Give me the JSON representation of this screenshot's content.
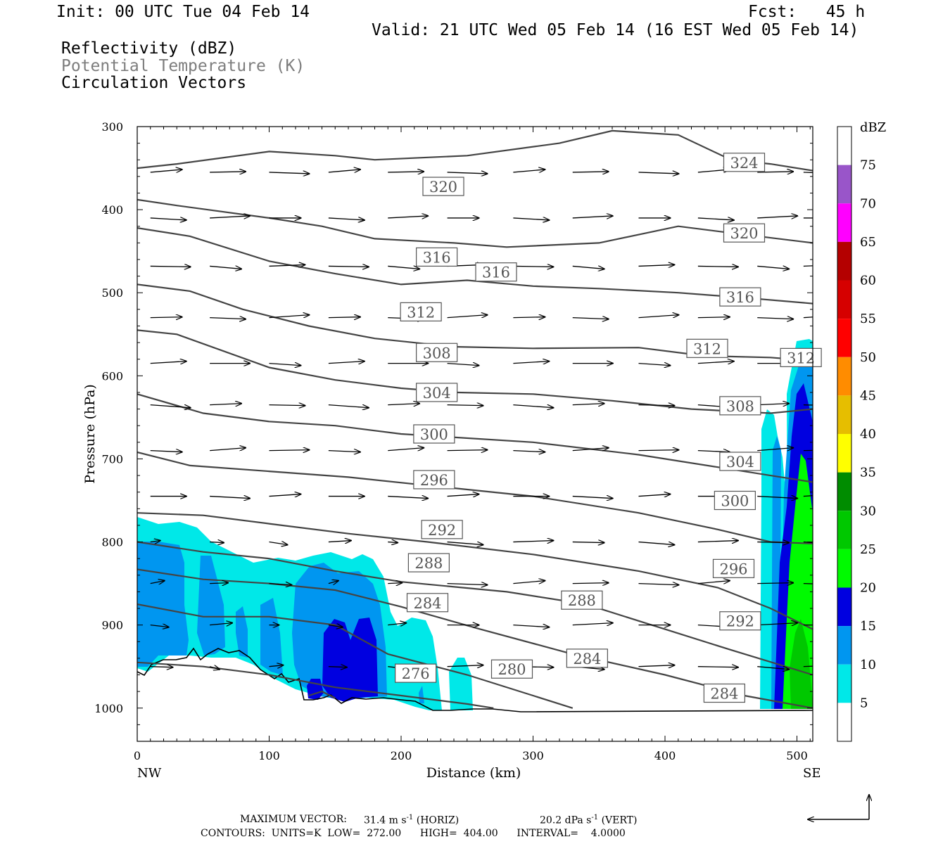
{
  "header": {
    "init": "Init: 00 UTC Tue 04 Feb 14",
    "fcst": "Fcst:   45 h",
    "valid": "Valid: 21 UTC Wed 05 Feb 14 (16 EST Wed 05 Feb 14)",
    "field1": "Reflectivity (dBZ)",
    "field2": "Potential Temperature (K)",
    "field3": "Circulation Vectors"
  },
  "footer": {
    "max_vector_label": "MAXIMUM VECTOR:",
    "max_horiz": "31.4 m s",
    "horiz_suffix": "(HORIZ)",
    "max_vert": "20.2 dPa s",
    "vert_suffix": "(VERT)",
    "exp": "-1",
    "contours": "CONTOURS:  UNITS=K  LOW=  272.00      HIGH=  404.00      INTERVAL=    4.0000"
  },
  "chart_data": {
    "type": "cross-section",
    "xlabel": "Distance (km)",
    "ylabel": "Pressure (hPa)",
    "x_left_label": "NW",
    "x_right_label": "SE",
    "xlim": [
      0,
      512
    ],
    "ylim": [
      1040,
      300
    ],
    "x_ticks": [
      0,
      100,
      200,
      300,
      400,
      500
    ],
    "y_ticks": [
      300,
      400,
      500,
      600,
      700,
      800,
      900,
      1000
    ],
    "colorbar": {
      "title": "dBZ",
      "levels": [
        5,
        10,
        15,
        20,
        25,
        30,
        35,
        40,
        45,
        50,
        55,
        60,
        65,
        70,
        75
      ],
      "colors": [
        "#ffffff",
        "#00e8e8",
        "#0096f0",
        "#0000e0",
        "#00fa00",
        "#00c800",
        "#008c00",
        "#ffff00",
        "#e6be00",
        "#ff8c00",
        "#ff0000",
        "#d60000",
        "#b40000",
        "#ff00ff",
        "#9955c9",
        "#ffffff"
      ]
    },
    "theta_contours": [
      {
        "label": "324",
        "points": [
          [
            0,
            350
          ],
          [
            30,
            345
          ],
          [
            100,
            330
          ],
          [
            150,
            335
          ],
          [
            180,
            340
          ],
          [
            250,
            335
          ],
          [
            320,
            320
          ],
          [
            360,
            305
          ],
          [
            410,
            310
          ],
          [
            450,
            340
          ],
          [
            480,
            345
          ],
          [
            512,
            353
          ]
        ]
      },
      {
        "label": "320",
        "points": [
          [
            0,
            388
          ],
          [
            30,
            395
          ],
          [
            100,
            410
          ],
          [
            140,
            420
          ],
          [
            180,
            435
          ],
          [
            240,
            440
          ],
          [
            280,
            445
          ],
          [
            350,
            440
          ],
          [
            410,
            420
          ],
          [
            450,
            428
          ],
          [
            512,
            440
          ]
        ]
      },
      {
        "label": "316",
        "points": [
          [
            0,
            422
          ],
          [
            40,
            432
          ],
          [
            100,
            462
          ],
          [
            150,
            477
          ],
          [
            200,
            490
          ],
          [
            250,
            485
          ],
          [
            300,
            492
          ],
          [
            350,
            495
          ],
          [
            410,
            500
          ],
          [
            460,
            506
          ],
          [
            512,
            513
          ]
        ]
      },
      {
        "label": "312",
        "points": [
          [
            0,
            490
          ],
          [
            40,
            498
          ],
          [
            80,
            520
          ],
          [
            130,
            540
          ],
          [
            180,
            555
          ],
          [
            240,
            565
          ],
          [
            300,
            567
          ],
          [
            380,
            566
          ],
          [
            430,
            576
          ],
          [
            480,
            578
          ],
          [
            512,
            582
          ]
        ]
      },
      {
        "label": "308",
        "points": [
          [
            0,
            545
          ],
          [
            30,
            550
          ],
          [
            100,
            590
          ],
          [
            150,
            605
          ],
          [
            200,
            615
          ],
          [
            240,
            620
          ],
          [
            300,
            622
          ],
          [
            360,
            630
          ],
          [
            420,
            640
          ],
          [
            480,
            645
          ],
          [
            512,
            640
          ]
        ]
      },
      {
        "label": "304",
        "points": [
          [
            0,
            622
          ],
          [
            50,
            645
          ],
          [
            100,
            655
          ],
          [
            150,
            660
          ],
          [
            200,
            670
          ],
          [
            300,
            680
          ],
          [
            380,
            695
          ],
          [
            440,
            710
          ],
          [
            480,
            720
          ],
          [
            512,
            728
          ]
        ]
      },
      {
        "label": "300",
        "points": [
          [
            0,
            692
          ],
          [
            40,
            708
          ],
          [
            100,
            715
          ],
          [
            160,
            722
          ],
          [
            220,
            732
          ],
          [
            300,
            745
          ],
          [
            380,
            765
          ],
          [
            440,
            785
          ],
          [
            480,
            800
          ],
          [
            512,
            802
          ]
        ]
      },
      {
        "label": "296",
        "points": [
          [
            0,
            765
          ],
          [
            50,
            768
          ],
          [
            100,
            778
          ],
          [
            160,
            790
          ],
          [
            220,
            800
          ],
          [
            300,
            815
          ],
          [
            380,
            835
          ],
          [
            440,
            855
          ],
          [
            480,
            880
          ],
          [
            512,
            905
          ]
        ]
      },
      {
        "label": "292",
        "points": [
          [
            0,
            800
          ],
          [
            50,
            812
          ],
          [
            100,
            820
          ],
          [
            150,
            835
          ],
          [
            200,
            848
          ],
          [
            280,
            860
          ],
          [
            340,
            875
          ],
          [
            400,
            905
          ],
          [
            450,
            930
          ],
          [
            512,
            960
          ]
        ]
      },
      {
        "label": "288",
        "points": [
          [
            0,
            833
          ],
          [
            50,
            845
          ],
          [
            100,
            850
          ],
          [
            150,
            858
          ],
          [
            200,
            878
          ],
          [
            260,
            905
          ],
          [
            330,
            935
          ],
          [
            400,
            960
          ],
          [
            460,
            985
          ],
          [
            512,
            1000
          ]
        ]
      },
      {
        "label": "284",
        "points": [
          [
            0,
            875
          ],
          [
            50,
            890
          ],
          [
            100,
            890
          ],
          [
            150,
            900
          ],
          [
            190,
            935
          ],
          [
            250,
            960
          ],
          [
            300,
            985
          ],
          [
            330,
            1000
          ]
        ]
      },
      {
        "label": "280",
        "points": [
          [
            0,
            945
          ],
          [
            50,
            950
          ],
          [
            100,
            960
          ],
          [
            150,
            975
          ],
          [
            200,
            985
          ],
          [
            250,
            995
          ],
          [
            270,
            1000
          ]
        ]
      },
      {
        "label": "276",
        "points": [
          [
            130,
            985
          ],
          [
            140,
            980
          ],
          [
            150,
            988
          ]
        ]
      }
    ],
    "theta_label_positions": [
      {
        "label": "324",
        "x": 460,
        "p": 343
      },
      {
        "label": "320",
        "x": 232,
        "p": 372
      },
      {
        "label": "320",
        "x": 460,
        "p": 428
      },
      {
        "label": "316",
        "x": 227,
        "p": 457
      },
      {
        "label": "316",
        "x": 272,
        "p": 475
      },
      {
        "label": "316",
        "x": 457,
        "p": 505
      },
      {
        "label": "312",
        "x": 215,
        "p": 523
      },
      {
        "label": "312",
        "x": 432,
        "p": 567
      },
      {
        "label": "312",
        "x": 503,
        "p": 578
      },
      {
        "label": "308",
        "x": 227,
        "p": 572
      },
      {
        "label": "308",
        "x": 457,
        "p": 636
      },
      {
        "label": "304",
        "x": 227,
        "p": 620
      },
      {
        "label": "304",
        "x": 457,
        "p": 703
      },
      {
        "label": "300",
        "x": 225,
        "p": 670
      },
      {
        "label": "300",
        "x": 453,
        "p": 750
      },
      {
        "label": "296",
        "x": 225,
        "p": 725
      },
      {
        "label": "296",
        "x": 452,
        "p": 832
      },
      {
        "label": "292",
        "x": 231,
        "p": 785
      },
      {
        "label": "292",
        "x": 457,
        "p": 895
      },
      {
        "label": "288",
        "x": 221,
        "p": 825
      },
      {
        "label": "288",
        "x": 337,
        "p": 870
      },
      {
        "label": "284",
        "x": 220,
        "p": 873
      },
      {
        "label": "284",
        "x": 341,
        "p": 940
      },
      {
        "label": "284",
        "x": 445,
        "p": 982
      },
      {
        "label": "280",
        "x": 284,
        "p": 953
      },
      {
        "label": "276",
        "x": 211,
        "p": 958
      }
    ]
  }
}
